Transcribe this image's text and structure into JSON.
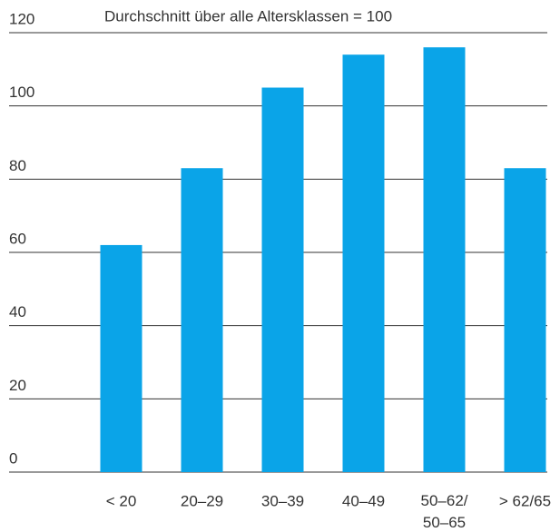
{
  "chart_data": {
    "type": "bar",
    "title": "Durchschnitt über alle Altersklassen = 100",
    "categories": [
      "< 20",
      "20–29",
      "30–39",
      "40–49",
      "50–62/\n50–65",
      "> 62/65"
    ],
    "values": [
      62,
      83,
      105,
      114,
      116,
      83
    ],
    "color": "#0aa4e8",
    "ylim": [
      0,
      120
    ],
    "yticks": [
      0,
      20,
      40,
      60,
      80,
      100,
      120
    ],
    "grid": true
  }
}
